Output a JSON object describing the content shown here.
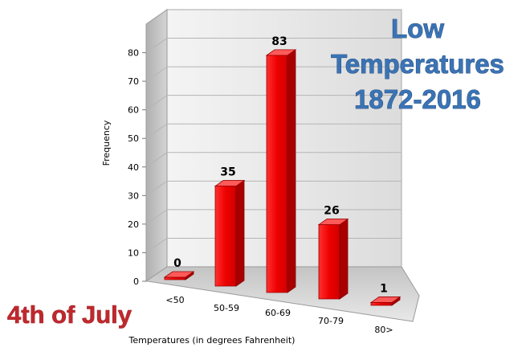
{
  "chart_data": {
    "type": "bar",
    "title_lines": [
      "Low",
      "Temperatures",
      "1872-2016"
    ],
    "subtitle": "4th of July",
    "xlabel": "Temperatures (in degrees Fahrenheit)",
    "ylabel": "Frequency",
    "categories": [
      "<50",
      "50-59",
      "60-69",
      "70-79",
      "80>"
    ],
    "values": [
      0,
      35,
      83,
      26,
      1
    ],
    "data_labels": [
      "0",
      "35",
      "83",
      "26",
      "1"
    ],
    "yticks": [
      "0",
      "10",
      "20",
      "30",
      "40",
      "50",
      "60",
      "70",
      "80"
    ],
    "ylim": [
      0,
      90
    ],
    "grid": true,
    "legend": "none",
    "bar_color": "#ee0000",
    "title_color": "#3a74b6",
    "subtitle_color": "#c0282d"
  }
}
